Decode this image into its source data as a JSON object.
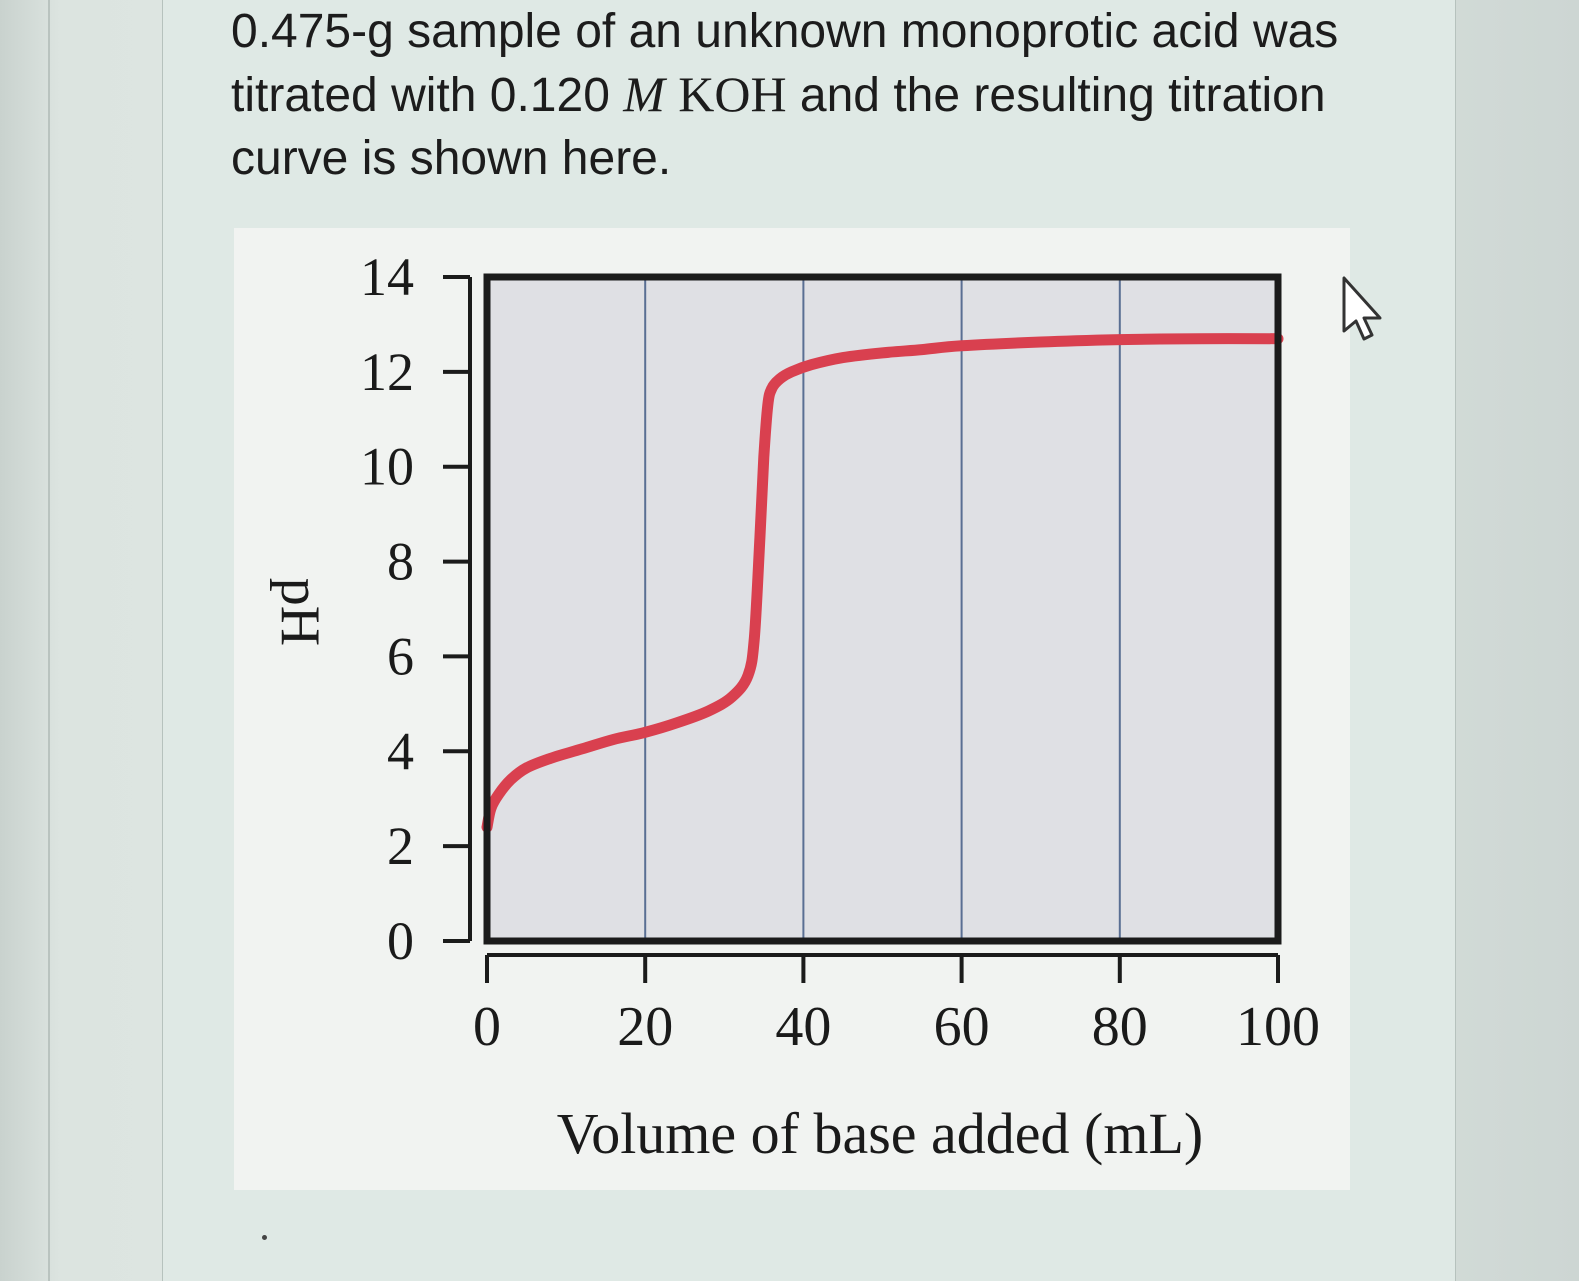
{
  "question": {
    "part1": "0.475-g sample of an unknown monoprotic acid was titrated with 0.120 ",
    "molar_symbol": "M",
    "base": "KOH",
    "part2": " and the resulting titration curve is shown here."
  },
  "chart_data": {
    "type": "line",
    "title": "",
    "xlabel": "Volume of base added (mL)",
    "ylabel": "pH",
    "xlim": [
      0,
      100
    ],
    "ylim": [
      0,
      14
    ],
    "xticks": [
      0,
      20,
      40,
      60,
      80,
      100
    ],
    "yticks": [
      0,
      2,
      4,
      6,
      8,
      10,
      12,
      14
    ],
    "grid": "vertical",
    "background": "#dfe0e4",
    "series": [
      {
        "color": "#d9404f",
        "x": [
          0,
          0.5,
          1.5,
          3,
          5,
          8,
          12,
          16,
          20,
          24,
          28,
          31,
          33,
          33.8,
          34.5,
          35,
          35.5,
          36,
          37,
          38.5,
          41,
          45,
          50,
          55,
          60,
          70,
          80,
          90,
          100
        ],
        "y": [
          2.4,
          2.8,
          3.1,
          3.4,
          3.65,
          3.85,
          4.05,
          4.25,
          4.4,
          4.6,
          4.85,
          5.15,
          5.6,
          6.4,
          8.5,
          10.2,
          11.3,
          11.65,
          11.85,
          12.0,
          12.15,
          12.3,
          12.4,
          12.47,
          12.55,
          12.63,
          12.68,
          12.7,
          12.7
        ]
      }
    ]
  }
}
